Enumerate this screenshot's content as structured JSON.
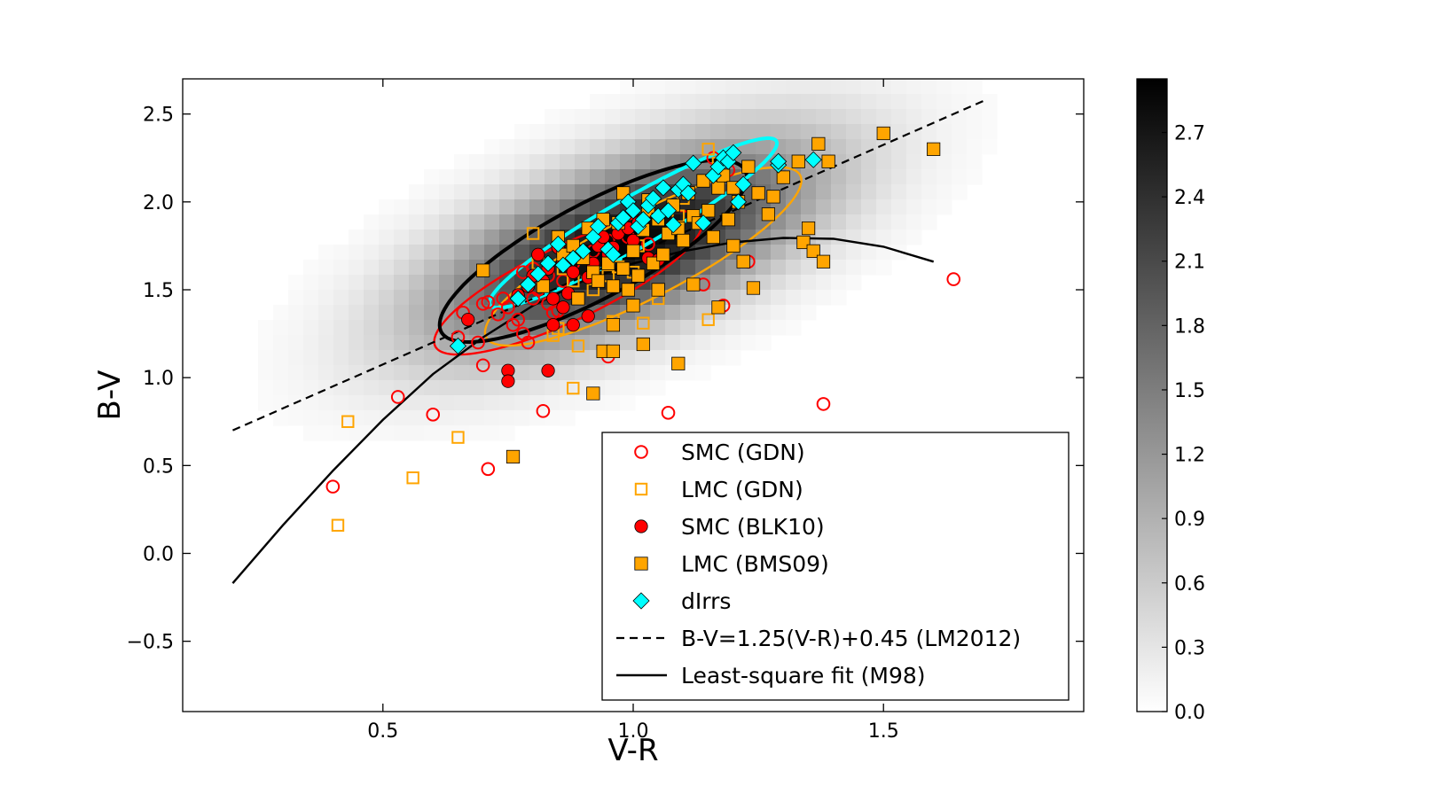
{
  "chart_data": {
    "type": "scatter",
    "xlabel": "V-R",
    "ylabel": "B-V",
    "xlim": [
      0.1,
      1.9
    ],
    "ylim": [
      -0.9,
      2.7
    ],
    "xticks": [
      0.5,
      1.0,
      1.5
    ],
    "xtick_labels": [
      "0.5",
      "1.0",
      "1.5"
    ],
    "yticks": [
      -0.5,
      0.0,
      0.5,
      1.0,
      1.5,
      2.0,
      2.5
    ],
    "ytick_labels": [
      "−0.5",
      "0.0",
      "0.5",
      "1.0",
      "1.5",
      "2.0",
      "2.5"
    ],
    "grid": false,
    "legend_position": "lower-right",
    "colorbar": {
      "range": [
        0,
        2.95
      ],
      "ticks": [
        0.0,
        0.3,
        0.6,
        0.9,
        1.2,
        1.5,
        1.8,
        2.1,
        2.4,
        2.7
      ],
      "tick_labels": [
        "0.0",
        "0.3",
        "0.6",
        "0.9",
        "1.2",
        "1.5",
        "1.8",
        "2.1",
        "2.4",
        "2.7"
      ],
      "colormap": "greys"
    },
    "density_background": {
      "center": [
        0.98,
        1.75
      ],
      "spread": [
        0.3,
        0.42
      ],
      "rotation_deg": 63,
      "peak": 2.95
    },
    "series": [
      {
        "name": "SMC (GDN)",
        "marker": "open-circle",
        "color": "#ff0000",
        "points": [
          [
            0.4,
            0.38
          ],
          [
            0.53,
            0.89
          ],
          [
            0.6,
            0.79
          ],
          [
            0.71,
            0.48
          ],
          [
            0.7,
            1.07
          ],
          [
            0.82,
            0.81
          ],
          [
            0.95,
            1.12
          ],
          [
            1.07,
            0.8
          ],
          [
            1.38,
            0.85
          ],
          [
            1.64,
            1.56
          ],
          [
            0.65,
            1.23
          ],
          [
            0.69,
            1.2
          ],
          [
            0.66,
            1.37
          ],
          [
            0.7,
            1.42
          ],
          [
            0.71,
            1.43
          ],
          [
            0.73,
            1.36
          ],
          [
            0.74,
            1.45
          ],
          [
            0.75,
            1.4
          ],
          [
            0.76,
            1.3
          ],
          [
            0.77,
            1.33
          ],
          [
            0.78,
            1.25
          ],
          [
            0.79,
            1.2
          ],
          [
            0.8,
            1.45
          ],
          [
            0.81,
            1.5
          ],
          [
            0.83,
            1.42
          ],
          [
            0.84,
            1.37
          ],
          [
            0.85,
            1.38
          ],
          [
            0.86,
            1.55
          ],
          [
            0.78,
            1.6
          ],
          [
            0.8,
            1.62
          ],
          [
            0.83,
            1.58
          ],
          [
            0.88,
            1.65
          ],
          [
            0.9,
            1.7
          ],
          [
            0.92,
            1.72
          ],
          [
            0.85,
            1.75
          ],
          [
            0.95,
            1.78
          ],
          [
            0.99,
            1.8
          ],
          [
            1.03,
            1.76
          ],
          [
            1.14,
            1.53
          ],
          [
            1.18,
            1.41
          ],
          [
            1.23,
            1.66
          ],
          [
            1.16,
            2.25
          ],
          [
            1.19,
            2.18
          ]
        ]
      },
      {
        "name": "LMC (GDN)",
        "marker": "open-square",
        "color": "#ffa500",
        "points": [
          [
            0.41,
            0.16
          ],
          [
            0.43,
            0.75
          ],
          [
            0.56,
            0.43
          ],
          [
            0.65,
            0.66
          ],
          [
            0.88,
            0.94
          ],
          [
            0.89,
            1.18
          ],
          [
            0.96,
            1.32
          ],
          [
            1.02,
            1.31
          ],
          [
            1.15,
            1.33
          ],
          [
            0.84,
            1.24
          ],
          [
            0.85,
            1.28
          ],
          [
            0.8,
            1.82
          ],
          [
            0.81,
            1.65
          ],
          [
            0.86,
            1.62
          ],
          [
            0.88,
            1.55
          ],
          [
            0.92,
            1.5
          ],
          [
            0.95,
            1.58
          ],
          [
            0.97,
            1.63
          ],
          [
            1.0,
            1.6
          ],
          [
            1.01,
            1.75
          ],
          [
            1.05,
            1.45
          ],
          [
            1.09,
            1.92
          ],
          [
            1.1,
            2.02
          ],
          [
            1.15,
            2.3
          ],
          [
            1.17,
            2.22
          ]
        ]
      },
      {
        "name": "SMC (BLK10)",
        "marker": "filled-circle",
        "color": "#ff0000",
        "points": [
          [
            0.67,
            1.33
          ],
          [
            0.75,
            1.04
          ],
          [
            0.75,
            0.98
          ],
          [
            0.83,
            1.04
          ],
          [
            0.84,
            1.3
          ],
          [
            0.88,
            1.3
          ],
          [
            0.91,
            1.35
          ],
          [
            0.77,
            1.47
          ],
          [
            0.79,
            1.52
          ],
          [
            0.8,
            1.58
          ],
          [
            0.82,
            1.55
          ],
          [
            0.83,
            1.62
          ],
          [
            0.84,
            1.45
          ],
          [
            0.86,
            1.4
          ],
          [
            0.87,
            1.48
          ],
          [
            0.88,
            1.6
          ],
          [
            0.89,
            1.68
          ],
          [
            0.9,
            1.72
          ],
          [
            0.91,
            1.57
          ],
          [
            0.92,
            1.65
          ],
          [
            0.93,
            1.75
          ],
          [
            0.94,
            1.8
          ],
          [
            0.95,
            1.7
          ],
          [
            0.96,
            1.74
          ],
          [
            0.81,
            1.7
          ],
          [
            0.85,
            1.74
          ],
          [
            0.97,
            1.82
          ],
          [
            0.99,
            1.85
          ],
          [
            1.0,
            1.78
          ],
          [
            1.01,
            1.88
          ],
          [
            1.03,
            1.68
          ],
          [
            1.05,
            1.67
          ],
          [
            0.86,
            1.66
          ]
        ]
      },
      {
        "name": "LMC (BMS09)",
        "marker": "filled-square",
        "color": "#ffa500",
        "points": [
          [
            0.7,
            1.61
          ],
          [
            0.76,
            0.55
          ],
          [
            0.92,
            0.91
          ],
          [
            0.94,
            1.15
          ],
          [
            0.96,
            1.15
          ],
          [
            1.02,
            1.19
          ],
          [
            1.09,
            1.08
          ],
          [
            0.96,
            1.3
          ],
          [
            1.0,
            1.41
          ],
          [
            1.05,
            1.5
          ],
          [
            1.12,
            1.53
          ],
          [
            1.17,
            1.4
          ],
          [
            1.22,
            1.66
          ],
          [
            1.24,
            1.51
          ],
          [
            1.27,
            1.93
          ],
          [
            1.28,
            2.03
          ],
          [
            1.3,
            2.14
          ],
          [
            1.34,
            1.77
          ],
          [
            1.35,
            1.85
          ],
          [
            1.36,
            1.72
          ],
          [
            1.37,
            2.33
          ],
          [
            1.38,
            1.66
          ],
          [
            1.39,
            2.23
          ],
          [
            1.5,
            2.39
          ],
          [
            1.6,
            2.3
          ],
          [
            1.33,
            2.23
          ],
          [
            0.85,
            1.8
          ],
          [
            0.86,
            1.7
          ],
          [
            0.88,
            1.75
          ],
          [
            0.9,
            1.68
          ],
          [
            0.91,
            1.85
          ],
          [
            0.92,
            1.6
          ],
          [
            0.93,
            1.55
          ],
          [
            0.94,
            1.9
          ],
          [
            0.95,
            1.65
          ],
          [
            0.96,
            1.52
          ],
          [
            0.97,
            1.88
          ],
          [
            0.98,
            1.62
          ],
          [
            0.99,
            1.5
          ],
          [
            1.0,
            1.72
          ],
          [
            1.01,
            1.58
          ],
          [
            1.02,
            1.84
          ],
          [
            1.03,
            1.95
          ],
          [
            1.04,
            1.65
          ],
          [
            1.05,
            1.9
          ],
          [
            1.06,
            1.7
          ],
          [
            1.07,
            1.82
          ],
          [
            1.08,
            1.98
          ],
          [
            1.09,
            1.85
          ],
          [
            1.1,
            1.78
          ],
          [
            1.11,
            2.05
          ],
          [
            1.12,
            1.92
          ],
          [
            1.13,
            1.88
          ],
          [
            1.14,
            2.12
          ],
          [
            1.15,
            1.95
          ],
          [
            1.16,
            1.8
          ],
          [
            1.17,
            2.08
          ],
          [
            1.18,
            2.15
          ],
          [
            1.19,
            1.9
          ],
          [
            1.2,
            1.75
          ],
          [
            1.21,
            2.0
          ],
          [
            1.23,
            2.2
          ],
          [
            1.25,
            2.05
          ],
          [
            0.98,
            2.05
          ],
          [
            1.03,
            2.01
          ],
          [
            0.82,
            1.52
          ],
          [
            0.89,
            1.45
          ],
          [
            1.2,
            2.08
          ]
        ]
      },
      {
        "name": "dIrrs",
        "marker": "filled-diamond",
        "color": "#00ffff",
        "points": [
          [
            0.65,
            1.18
          ],
          [
            0.77,
            1.45
          ],
          [
            0.79,
            1.53
          ],
          [
            0.81,
            1.59
          ],
          [
            0.83,
            1.65
          ],
          [
            0.85,
            1.76
          ],
          [
            0.86,
            1.64
          ],
          [
            0.88,
            1.68
          ],
          [
            0.9,
            1.72
          ],
          [
            0.92,
            1.8
          ],
          [
            0.93,
            1.86
          ],
          [
            0.95,
            1.73
          ],
          [
            0.96,
            1.7
          ],
          [
            0.97,
            1.88
          ],
          [
            0.98,
            1.91
          ],
          [
            0.99,
            2.0
          ],
          [
            1.0,
            1.95
          ],
          [
            1.01,
            1.86
          ],
          [
            1.02,
            1.9
          ],
          [
            1.03,
            1.98
          ],
          [
            1.04,
            2.02
          ],
          [
            1.05,
            1.92
          ],
          [
            1.06,
            2.08
          ],
          [
            1.07,
            1.95
          ],
          [
            1.08,
            1.87
          ],
          [
            1.09,
            2.07
          ],
          [
            1.1,
            2.1
          ],
          [
            1.11,
            2.05
          ],
          [
            1.12,
            2.22
          ],
          [
            1.14,
            1.88
          ],
          [
            1.16,
            2.15
          ],
          [
            1.17,
            2.2
          ],
          [
            1.18,
            2.25
          ],
          [
            1.19,
            2.23
          ],
          [
            1.2,
            2.28
          ],
          [
            1.21,
            2.0
          ],
          [
            1.22,
            2.1
          ],
          [
            1.29,
            2.21
          ],
          [
            1.29,
            2.23
          ],
          [
            1.36,
            2.24
          ]
        ]
      }
    ],
    "lines": [
      {
        "name": "B-V=1.25(V-R)+0.45 (LM2012)",
        "style": "dashed",
        "color": "#000000",
        "slope": 1.25,
        "intercept": 0.45,
        "x_range": [
          0.2,
          1.7
        ]
      },
      {
        "name": "Least-square fit (M98)",
        "style": "solid",
        "color": "#000000",
        "points": [
          [
            0.2,
            -0.17
          ],
          [
            0.3,
            0.16
          ],
          [
            0.4,
            0.47
          ],
          [
            0.5,
            0.76
          ],
          [
            0.6,
            1.02
          ],
          [
            0.7,
            1.23
          ],
          [
            0.8,
            1.41
          ],
          [
            0.9,
            1.55
          ],
          [
            1.0,
            1.65
          ],
          [
            1.1,
            1.72
          ],
          [
            1.2,
            1.77
          ],
          [
            1.3,
            1.795
          ],
          [
            1.4,
            1.79
          ],
          [
            1.5,
            1.745
          ],
          [
            1.6,
            1.66
          ]
        ]
      }
    ],
    "contours": [
      {
        "color": "#ff0000",
        "center": [
          0.87,
          1.54
        ],
        "semi_axes": [
          0.47,
          0.133
        ],
        "rotation_deg": 59
      },
      {
        "color": "#ffa500",
        "center": [
          1.02,
          1.69
        ],
        "semi_axes": [
          0.58,
          0.145
        ],
        "rotation_deg": 60
      },
      {
        "color": "#000000",
        "center": [
          0.92,
          1.72
        ],
        "semi_axes": [
          0.58,
          0.16
        ],
        "rotation_deg": 62
      },
      {
        "color": "#00ffff",
        "center": [
          1.0,
          1.88
        ],
        "semi_axes": [
          0.555,
          0.085
        ],
        "rotation_deg": 60
      }
    ]
  }
}
